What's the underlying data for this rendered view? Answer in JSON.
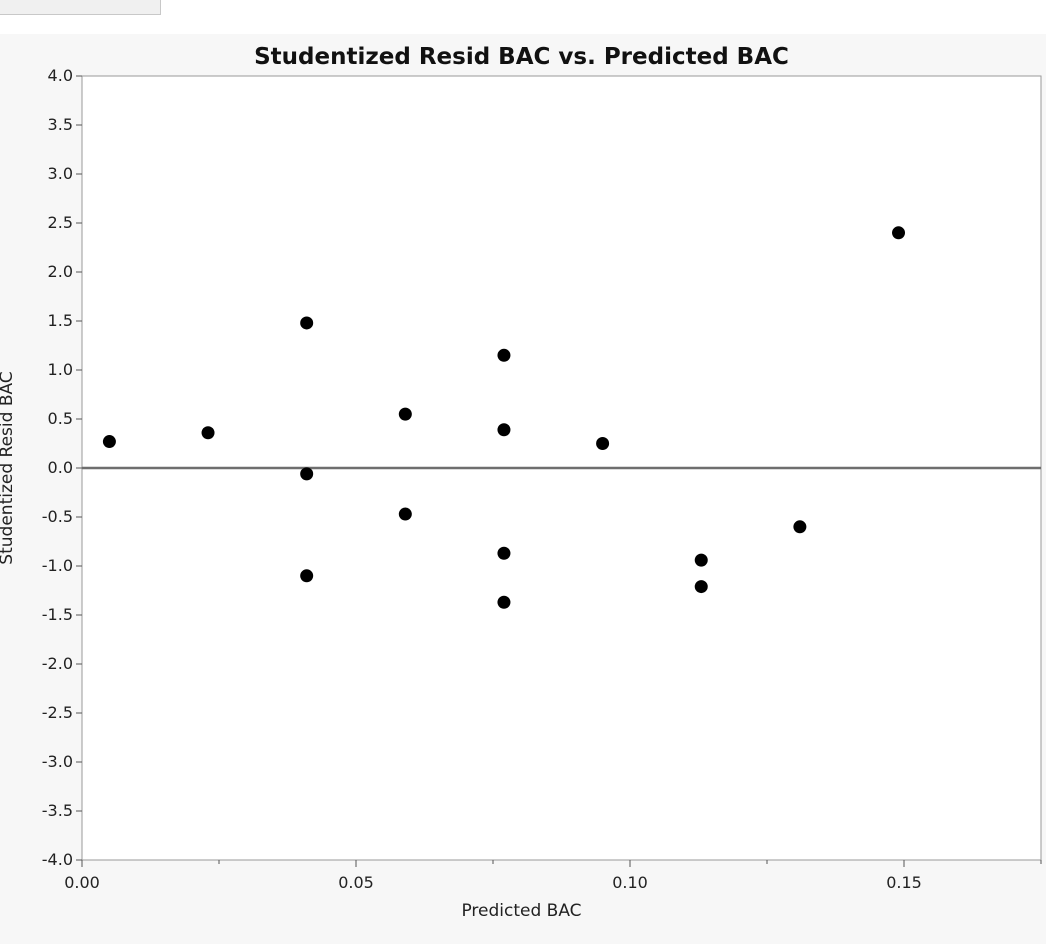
{
  "chart_data": {
    "type": "scatter",
    "title": "Studentized Resid BAC vs. Predicted BAC",
    "xlabel": "Predicted BAC",
    "ylabel": "Studentized Resid BAC",
    "xlim": [
      0.0,
      0.175
    ],
    "ylim": [
      -4.0,
      4.0
    ],
    "x_ticks": [
      0.0,
      0.05,
      0.1,
      0.15
    ],
    "x_tick_labels": [
      "0.00",
      "0.05",
      "0.10",
      "0.15"
    ],
    "y_ticks": [
      4.0,
      3.5,
      3.0,
      2.5,
      2.0,
      1.5,
      1.0,
      0.5,
      0.0,
      -0.5,
      -1.0,
      -1.5,
      -2.0,
      -2.5,
      -3.0,
      -3.5,
      -4.0
    ],
    "y_tick_labels": [
      "4.0",
      "3.5",
      "3.0",
      "2.5",
      "2.0",
      "1.5",
      "1.0",
      "0.5",
      "0.0",
      "-0.5",
      "-1.0",
      "-1.5",
      "-2.0",
      "-2.5",
      "-3.0",
      "-3.5",
      "-4.0"
    ],
    "reference_line_y": 0.0,
    "grid": false,
    "point_color": "#000000",
    "points": [
      {
        "x": 0.005,
        "y": 0.27
      },
      {
        "x": 0.023,
        "y": 0.36
      },
      {
        "x": 0.041,
        "y": 1.48
      },
      {
        "x": 0.041,
        "y": -0.06
      },
      {
        "x": 0.041,
        "y": -1.1
      },
      {
        "x": 0.059,
        "y": 0.55
      },
      {
        "x": 0.059,
        "y": -0.47
      },
      {
        "x": 0.077,
        "y": 1.15
      },
      {
        "x": 0.077,
        "y": 0.39
      },
      {
        "x": 0.077,
        "y": -0.87
      },
      {
        "x": 0.077,
        "y": -1.37
      },
      {
        "x": 0.095,
        "y": 0.25
      },
      {
        "x": 0.113,
        "y": -0.94
      },
      {
        "x": 0.113,
        "y": -1.21
      },
      {
        "x": 0.131,
        "y": -0.6
      },
      {
        "x": 0.149,
        "y": 2.4
      }
    ]
  }
}
